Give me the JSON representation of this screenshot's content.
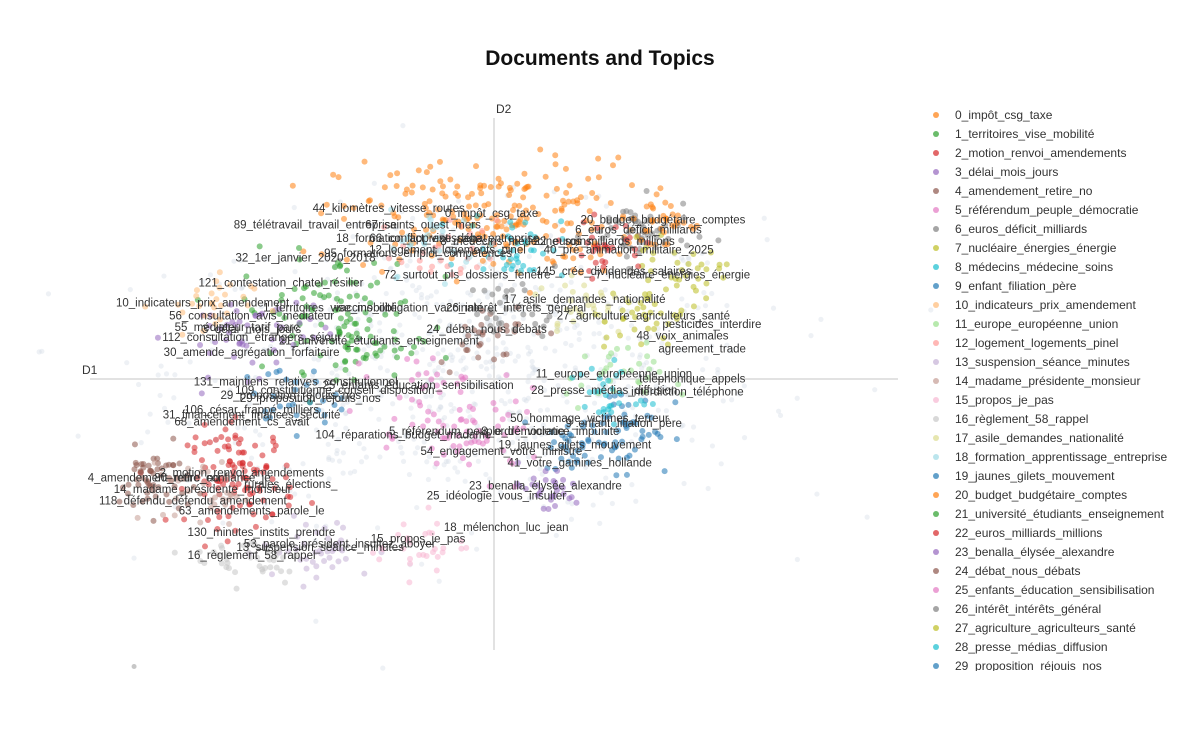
{
  "chart_data": {
    "type": "scatter",
    "title": "Documents and Topics",
    "xlabel": "D1",
    "ylabel": "D2",
    "grid": false,
    "legend_position": "right",
    "topics": [
      {
        "name": "0_impôt_csg_taxe",
        "color": "#ff7f0e",
        "label_pos": [
          -0.05,
          1.12
        ],
        "spread": [
          1.55,
          0.35
        ],
        "count": 230
      },
      {
        "name": "1_territoires_vise_mobilité",
        "color": "#2ca02c",
        "label_pos": [
          -1.7,
          0.55
        ],
        "spread": [
          0.9,
          0.35
        ],
        "count": 90
      },
      {
        "name": "2_motion_renvoi_amendements",
        "color": "#d62728",
        "label_pos": [
          -2.6,
          -0.45
        ],
        "spread": [
          0.55,
          0.3
        ],
        "count": 110
      },
      {
        "name": "3_délai_mois_jours",
        "color": "#9467bd",
        "label_pos": [
          -2.5,
          0.42
        ],
        "spread": [
          0.8,
          0.25
        ],
        "count": 50
      },
      {
        "name": "4_amendement_retire_no",
        "color": "#8c564b",
        "label_pos": [
          -3.5,
          -0.48
        ],
        "spread": [
          0.35,
          0.2
        ],
        "count": 60
      },
      {
        "name": "5_référendum_peuple_démocratie",
        "color": "#e377c2",
        "label_pos": [
          -0.2,
          -0.2
        ],
        "spread": [
          0.7,
          0.25
        ],
        "count": 60
      },
      {
        "name": "6_euros_déficit_milliards",
        "color": "#7f7f7f",
        "label_pos": [
          1.45,
          1.02
        ],
        "spread": [
          0.55,
          0.2
        ],
        "count": 60
      },
      {
        "name": "7_nucléaire_énergies_énergie",
        "color": "#bcbd22",
        "label_pos": [
          1.8,
          0.75
        ],
        "spread": [
          0.5,
          0.2
        ],
        "count": 40
      },
      {
        "name": "8_médecins_médecine_soins",
        "color": "#17becf",
        "label_pos": [
          0.2,
          0.95
        ],
        "spread": [
          0.5,
          0.2
        ],
        "count": 40
      },
      {
        "name": "9_enfant_filiation_père",
        "color": "#1f77b4",
        "label_pos": [
          1.3,
          -0.15
        ],
        "spread": [
          0.5,
          0.25
        ],
        "count": 50
      },
      {
        "name": "10_indicateurs_prix_amendement",
        "color": "#ffbb78",
        "label_pos": [
          -3.0,
          0.58
        ],
        "spread": [
          0.5,
          0.2
        ],
        "count": 30
      },
      {
        "name": "11_europe_européenne_union",
        "color": "#98df8a",
        "label_pos": [
          1.2,
          0.15
        ],
        "spread": [
          0.5,
          0.2
        ],
        "count": 30
      },
      {
        "name": "12_logement_logements_pinel",
        "color": "#ff9896",
        "label_pos": [
          -0.5,
          0.9
        ],
        "spread": [
          0.5,
          0.2
        ],
        "count": 30
      },
      {
        "name": "13_suspension_séance_minutes",
        "color": "#c5b0d5",
        "label_pos": [
          -1.8,
          -0.9
        ],
        "spread": [
          0.6,
          0.2
        ],
        "count": 40
      },
      {
        "name": "14_madame_présidente_monsieur",
        "color": "#c49c94",
        "label_pos": [
          -3.0,
          -0.55
        ],
        "spread": [
          0.4,
          0.2
        ],
        "count": 30
      },
      {
        "name": "15_propos_je_pas",
        "color": "#f7b6d2",
        "label_pos": [
          -0.8,
          -0.85
        ],
        "spread": [
          0.5,
          0.2
        ],
        "count": 30
      },
      {
        "name": "16_règlement_58_rappel",
        "color": "#c7c7c7",
        "label_pos": [
          -2.5,
          -0.95
        ],
        "spread": [
          0.6,
          0.15
        ],
        "count": 40
      },
      {
        "name": "17_asile_demandes_nationalité",
        "color": "#dbdb8d",
        "label_pos": [
          0.9,
          0.6
        ],
        "spread": [
          0.5,
          0.2
        ],
        "count": 30
      },
      {
        "name": "18_formation_apprentissage_entreprise",
        "color": "#9edae5",
        "label_pos": [
          -0.6,
          0.97
        ],
        "spread": [
          0.5,
          0.2
        ],
        "count": 30
      },
      {
        "name": "19_jaunes_gilets_mouvement",
        "color": "#1f77b4",
        "label_pos": [
          0.8,
          -0.28
        ],
        "spread": [
          0.3,
          0.15
        ],
        "count": 30
      },
      {
        "name": "20_budget_budgétaire_comptes",
        "color": "#ff7f0e",
        "label_pos": [
          1.7,
          1.08
        ],
        "spread": [
          0.4,
          0.15
        ],
        "count": 30
      },
      {
        "name": "21_université_étudiants_enseignement",
        "color": "#2ca02c",
        "label_pos": [
          -1.2,
          0.35
        ],
        "spread": [
          0.5,
          0.2
        ],
        "count": 30
      },
      {
        "name": "22_euros_milliards_millions",
        "color": "#d62728",
        "label_pos": [
          1.1,
          0.95
        ],
        "spread": [
          0.4,
          0.15
        ],
        "count": 30
      },
      {
        "name": "23_benalla_élysée_alexandre",
        "color": "#9467bd",
        "label_pos": [
          0.5,
          -0.53
        ],
        "spread": [
          0.4,
          0.15
        ],
        "count": 30
      },
      {
        "name": "24_débat_nous_débats",
        "color": "#8c564b",
        "label_pos": [
          -0.1,
          0.42
        ],
        "spread": [
          0.5,
          0.2
        ],
        "count": 30
      },
      {
        "name": "25_enfants_éducation_sensibilisation",
        "color": "#e377c2",
        "label_pos": [
          -0.8,
          0.08
        ],
        "spread": [
          0.5,
          0.2
        ],
        "count": 30
      },
      {
        "name": "26_intérêt_intérêts_général",
        "color": "#7f7f7f",
        "label_pos": [
          0.2,
          0.55
        ],
        "spread": [
          0.5,
          0.2
        ],
        "count": 30
      },
      {
        "name": "27_agriculture_agriculteurs_santé",
        "color": "#bcbd22",
        "label_pos": [
          1.5,
          0.5
        ],
        "spread": [
          0.4,
          0.2
        ],
        "count": 30
      },
      {
        "name": "28_presse_médias_diffusion",
        "color": "#17becf",
        "label_pos": [
          1.1,
          0.05
        ],
        "spread": [
          0.4,
          0.2
        ],
        "count": 30
      },
      {
        "name": "29_proposition_réjouis_nos",
        "color": "#1f77b4",
        "label_pos": [
          -2.1,
          0.02
        ],
        "spread": [
          0.5,
          0.2
        ],
        "count": 30
      }
    ],
    "extra_labels": [
      {
        "text": "44_kilomètres_vitesse_routes",
        "pos": [
          -1.1,
          1.15
        ]
      },
      {
        "text": "89_télétravail_travail_entreprise",
        "pos": [
          -1.85,
          1.05
        ]
      },
      {
        "text": "32_1er_janvier_2020_2018",
        "pos": [
          -1.95,
          0.85
        ]
      },
      {
        "text": "121_contestation_chatel_résilier",
        "pos": [
          -2.2,
          0.7
        ]
      },
      {
        "text": "56_consultation_avis_médiateur",
        "pos": [
          -2.5,
          0.5
        ]
      },
      {
        "text": "55_médiateur_tarif_parc",
        "pos": [
          -2.65,
          0.43
        ]
      },
      {
        "text": "112_consultation_étrangers_séjour",
        "pos": [
          -2.5,
          0.37
        ]
      },
      {
        "text": "30_amende_agrégation_forfaitaire",
        "pos": [
          -2.5,
          0.28
        ]
      },
      {
        "text": "131_maintiens_relatives_constitutionnel",
        "pos": [
          -2.05,
          0.1
        ]
      },
      {
        "text": "109_constitutionne_conseil_disposition",
        "pos": [
          -1.65,
          0.05
        ]
      },
      {
        "text": "29_proposition_réjouis_nos",
        "pos": [
          -1.9,
          0.0
        ]
      },
      {
        "text": "31_financement_finances_sécurité",
        "pos": [
          -2.5,
          -0.1
        ]
      },
      {
        "text": "106_césar_frappé_milliers",
        "pos": [
          -2.5,
          -0.07
        ]
      },
      {
        "text": "68_amendement_cs_avait",
        "pos": [
          -2.6,
          -0.14
        ]
      },
      {
        "text": "104_réparations_budget_madame",
        "pos": [
          -0.95,
          -0.22
        ]
      },
      {
        "text": "54_engagement_votre_ministre",
        "pos": [
          0.05,
          -0.32
        ]
      },
      {
        "text": "8_ordre_violence_impunité",
        "pos": [
          0.55,
          -0.2
        ]
      },
      {
        "text": "50_hommage_victimes_terreur",
        "pos": [
          0.95,
          -0.12
        ]
      },
      {
        "text": "118_défendu_défendu_amendement",
        "pos": [
          -3.1,
          -0.62
        ]
      },
      {
        "text": "80_retire_confiance_je",
        "pos": [
          -2.9,
          -0.48
        ]
      },
      {
        "text": "63_amendements_parole_le",
        "pos": [
          -2.5,
          -0.68
        ]
      },
      {
        "text": "130_minutes_instits_prendre",
        "pos": [
          -2.4,
          -0.81
        ]
      },
      {
        "text": "53_parole_président_insultez_aboyer",
        "pos": [
          -1.6,
          -0.88
        ]
      },
      {
        "text": "25_idéologie_vous_insulter",
        "pos": [
          0.0,
          -0.59
        ]
      },
      {
        "text": "18_mélenchon_luc_jean",
        "pos": [
          0.1,
          -0.78
        ]
      },
      {
        "text": "41_votre_gamines_hollande",
        "pos": [
          0.85,
          -0.39
        ]
      },
      {
        "text": "145_crée_dividendes_salaires",
        "pos": [
          1.2,
          0.77
        ]
      },
      {
        "text": "40_pré_animation_militaire_2025",
        "pos": [
          1.35,
          0.9
        ]
      },
      {
        "text": "66_conflict_vise_débat",
        "pos": [
          -0.7,
          0.97
        ]
      },
      {
        "text": "95_formations_emploi_compétences",
        "pos": [
          -0.8,
          0.88
        ]
      },
      {
        "text": "67_saints_ouest_mers",
        "pos": [
          -0.75,
          1.05
        ]
      },
      {
        "text": "72_surtout_pls_dossiers_fenêtre",
        "pos": [
          -0.3,
          0.75
        ]
      },
      {
        "text": "pesticides_interdire",
        "pos": [
          2.2,
          0.45
        ]
      },
      {
        "text": "48_voix_animales",
        "pos": [
          1.9,
          0.38
        ]
      },
      {
        "text": "téléphonique_appels",
        "pos": [
          2.0,
          0.12
        ]
      },
      {
        "text": "interdiction_téléphone",
        "pos": [
          1.95,
          0.04
        ]
      },
      {
        "text": "agreement_trade",
        "pos": [
          2.1,
          0.3
        ]
      },
      {
        "text": "rurales_élections_",
        "pos": [
          -2.1,
          -0.52
        ]
      },
      {
        "text": "vaccins_obligation_vaccinale",
        "pos": [
          -0.9,
          0.55
        ]
      }
    ],
    "outliers": [
      [
        -3.7,
        -1.6
      ]
    ],
    "xlim": [
      -4.15,
      4.1
    ],
    "ylim": [
      -1.5,
      1.72
    ]
  }
}
